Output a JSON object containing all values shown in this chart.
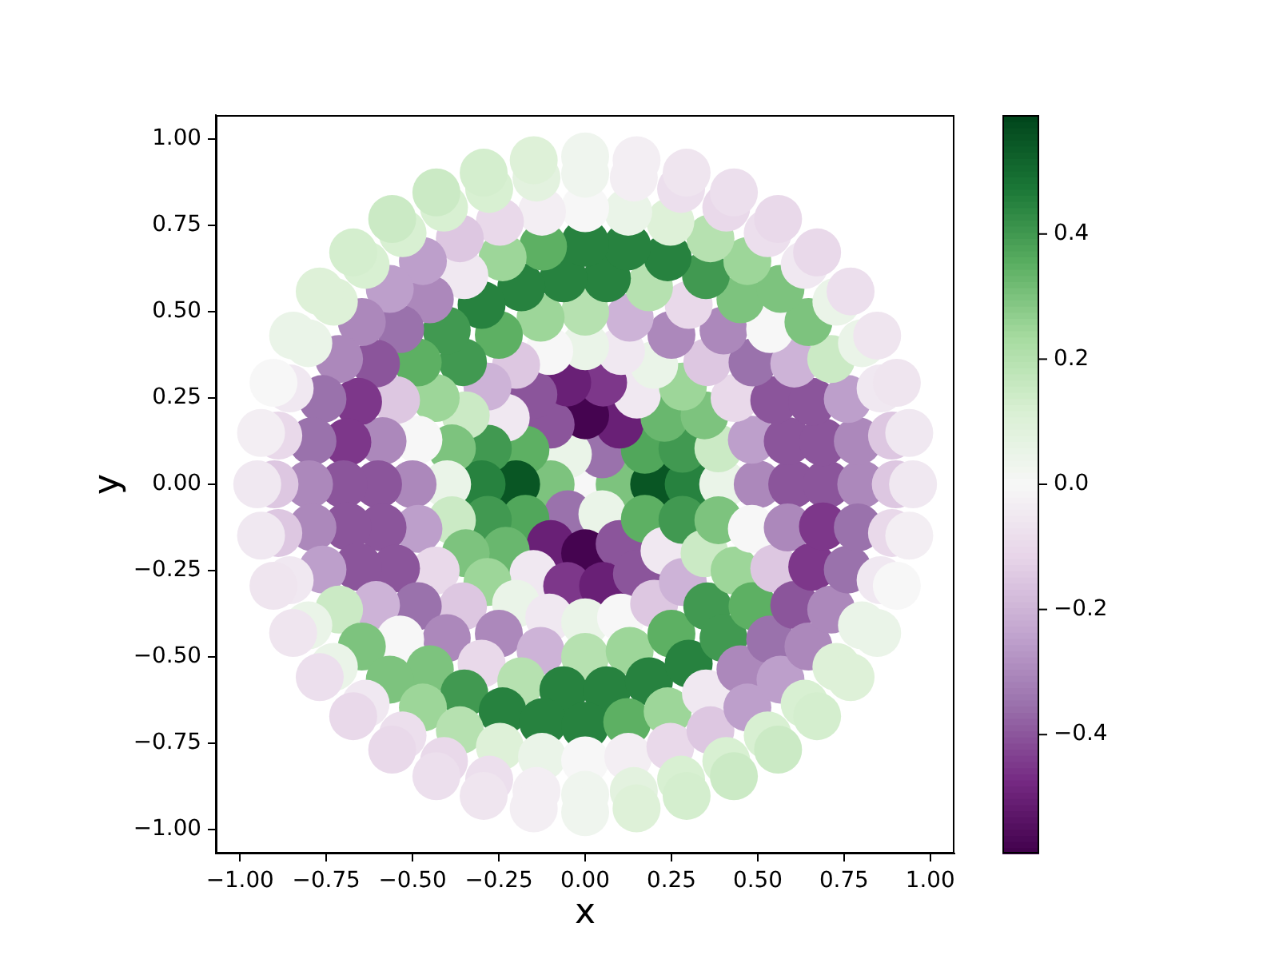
{
  "chart_data": {
    "type": "scatter",
    "xlabel": "x",
    "ylabel": "y",
    "marker": "circle",
    "xlim": [
      -1.07,
      1.07
    ],
    "ylim": [
      -1.07,
      1.07
    ],
    "xticks": [
      {
        "value": -1,
        "label": "−1.00"
      },
      {
        "value": -0.75,
        "label": "−0.75"
      },
      {
        "value": -0.5,
        "label": "−0.50"
      },
      {
        "value": -0.25,
        "label": "−0.25"
      },
      {
        "value": 0,
        "label": "0.00"
      },
      {
        "value": 0.25,
        "label": "0.25"
      },
      {
        "value": 0.5,
        "label": "0.50"
      },
      {
        "value": 0.75,
        "label": "0.75"
      },
      {
        "value": 1,
        "label": "1.00"
      }
    ],
    "yticks": [
      {
        "value": -1,
        "label": "−1.00"
      },
      {
        "value": -0.75,
        "label": "−0.75"
      },
      {
        "value": -0.5,
        "label": "−0.50"
      },
      {
        "value": -0.25,
        "label": "−0.25"
      },
      {
        "value": 0,
        "label": "0.00"
      },
      {
        "value": 0.25,
        "label": "0.25"
      },
      {
        "value": 0.5,
        "label": "0.50"
      },
      {
        "value": 0.75,
        "label": "0.75"
      },
      {
        "value": 1,
        "label": "1.00"
      }
    ],
    "clim": [
      -0.59,
      0.59
    ],
    "cticks": [
      {
        "value": -0.4,
        "label": "−0.4"
      },
      {
        "value": -0.2,
        "label": "−0.2"
      },
      {
        "value": 0,
        "label": "0.0"
      },
      0.2,
      0.4
    ],
    "x": [
      0,
      0.1,
      0.05,
      -0.05,
      -0.1,
      -0.05,
      0.05,
      0.2,
      0.173,
      0.1,
      0,
      -0.1,
      -0.173,
      -0.2,
      -0.173,
      -0.1,
      0,
      0.1,
      0.173,
      0.3,
      0.282,
      0.23,
      0.15,
      0.052,
      -0.052,
      -0.15,
      -0.23,
      -0.282,
      -0.3,
      -0.282,
      -0.23,
      -0.15,
      -0.052,
      0.052,
      0.15,
      0.23,
      0.282,
      0.4,
      0.386,
      0.346,
      0.283,
      0.2,
      0.104,
      0,
      -0.104,
      -0.2,
      -0.283,
      -0.346,
      -0.386,
      -0.4,
      -0.386,
      -0.346,
      -0.283,
      -0.2,
      -0.104,
      0,
      0.104,
      0.2,
      0.283,
      0.346,
      0.386,
      0.5,
      0.483,
      0.433,
      0.354,
      0.25,
      0.129,
      0,
      -0.129,
      -0.25,
      -0.354,
      -0.433,
      -0.483,
      -0.5,
      -0.483,
      -0.433,
      -0.354,
      -0.25,
      -0.129,
      0,
      0.129,
      0.25,
      0.354,
      0.433,
      0.483,
      0.6,
      0.587,
      0.548,
      0.485,
      0.401,
      0.3,
      0.185,
      0.063,
      -0.063,
      -0.185,
      -0.3,
      -0.401,
      -0.485,
      -0.548,
      -0.587,
      -0.6,
      -0.587,
      -0.548,
      -0.485,
      -0.401,
      -0.3,
      -0.185,
      -0.063,
      0.063,
      0.185,
      0.3,
      0.401,
      0.485,
      0.548,
      0.587,
      0.7,
      0.689,
      0.658,
      0.606,
      0.536,
      0.45,
      0.35,
      0.239,
      0.122,
      0,
      -0.122,
      -0.239,
      -0.35,
      -0.45,
      -0.536,
      -0.606,
      -0.658,
      -0.689,
      -0.7,
      -0.689,
      -0.658,
      -0.606,
      -0.536,
      -0.45,
      -0.35,
      -0.239,
      -0.122,
      0,
      0.122,
      0.239,
      0.35,
      0.45,
      0.536,
      0.606,
      0.658,
      0.689,
      0.8,
      0.79,
      0.761,
      0.713,
      0.647,
      0.566,
      0.47,
      0.363,
      0.247,
      0.125,
      0,
      -0.125,
      -0.247,
      -0.363,
      -0.47,
      -0.566,
      -0.647,
      -0.713,
      -0.761,
      -0.79,
      -0.8,
      -0.79,
      -0.761,
      -0.713,
      -0.647,
      -0.566,
      -0.47,
      -0.363,
      -0.247,
      -0.125,
      0,
      0.125,
      0.247,
      0.363,
      0.47,
      0.566,
      0.647,
      0.713,
      0.761,
      0.79,
      0.9,
      0.889,
      0.856,
      0.802,
      0.728,
      0.636,
      0.529,
      0.409,
      0.278,
      0.141,
      0,
      -0.141,
      -0.278,
      -0.409,
      -0.529,
      -0.636,
      -0.728,
      -0.802,
      -0.856,
      -0.889,
      -0.9,
      -0.889,
      -0.856,
      -0.802,
      -0.728,
      -0.636,
      -0.529,
      -0.409,
      -0.278,
      -0.141,
      0,
      0.141,
      0.278,
      0.409,
      0.529,
      0.636,
      0.728,
      0.802,
      0.856,
      0.889,
      0.95,
      0.939,
      0.903,
      0.846,
      0.769,
      0.672,
      0.559,
      0.431,
      0.294,
      0.149,
      0,
      -0.149,
      -0.294,
      -0.431,
      -0.559,
      -0.672,
      -0.769,
      -0.846,
      -0.903,
      -0.939,
      -0.95,
      -0.939,
      -0.903,
      -0.846,
      -0.769,
      -0.672,
      -0.559,
      -0.431,
      -0.294,
      -0.149,
      0,
      0.149,
      0.294,
      0.431,
      0.559,
      0.672,
      0.769,
      0.846,
      0.903,
      0.939
    ],
    "values": [
      0,
      0,
      0.087,
      0.087,
      0,
      -0.087,
      -0.087,
      0,
      0.1,
      0.173,
      0.2,
      0.173,
      0.1,
      0,
      -0.1,
      -0.173,
      -0.2,
      -0.173,
      -0.1,
      0,
      0.103,
      0.193,
      0.26,
      0.295,
      0.295,
      0.26,
      0.193,
      0.103,
      0,
      -0.103,
      -0.193,
      -0.26,
      -0.295,
      -0.295,
      -0.26,
      -0.193,
      -0.103,
      0,
      0.104,
      0.2,
      0.283,
      0.346,
      0.386,
      0.4,
      0.386,
      0.346,
      0.283,
      0.2,
      0.104,
      0,
      -0.104,
      -0.2,
      -0.283,
      -0.346,
      -0.386,
      -0.4,
      -0.386,
      -0.346,
      -0.283,
      -0.2,
      -0.104,
      0,
      0.129,
      0.25,
      0.354,
      0.433,
      0.483,
      0.5,
      0.483,
      0.433,
      0.354,
      0.25,
      0.129,
      0,
      -0.129,
      -0.25,
      -0.354,
      -0.433,
      -0.483,
      -0.5,
      -0.483,
      -0.433,
      -0.354,
      -0.25,
      -0.129,
      0,
      0.125,
      0.244,
      0.353,
      0.446,
      0.52,
      0.571,
      0.597,
      0.597,
      0.571,
      0.52,
      0.446,
      0.353,
      0.244,
      0.125,
      0,
      -0.125,
      -0.244,
      -0.353,
      -0.446,
      -0.52,
      -0.571,
      -0.597,
      -0.597,
      -0.571,
      -0.52,
      -0.446,
      -0.353,
      -0.244,
      -0.125,
      0,
      0.122,
      0.239,
      0.35,
      0.45,
      0.536,
      0.606,
      0.658,
      0.689,
      0.7,
      0.689,
      0.658,
      0.606,
      0.536,
      0.45,
      0.35,
      0.239,
      0.122,
      0,
      -0.122,
      -0.239,
      -0.35,
      -0.45,
      -0.536,
      -0.606,
      -0.658,
      -0.689,
      -0.7,
      -0.689,
      -0.658,
      -0.606,
      -0.536,
      -0.45,
      -0.35,
      -0.239,
      -0.122,
      0,
      0.125,
      0.247,
      0.363,
      0.47,
      0.566,
      0.647,
      0.713,
      0.761,
      0.79,
      0.8,
      0.79,
      0.761,
      0.713,
      0.647,
      0.566,
      0.47,
      0.363,
      0.247,
      0.125,
      0,
      -0.125,
      -0.247,
      -0.363,
      -0.47,
      -0.566,
      -0.647,
      -0.713,
      -0.761,
      -0.79,
      -0.8,
      -0.79,
      -0.761,
      -0.713,
      -0.647,
      -0.566,
      -0.47,
      -0.363,
      -0.247,
      -0.125,
      0,
      0.141,
      0.278,
      0.409,
      0.529,
      0.636,
      0.728,
      0.802,
      0.856,
      0.889,
      0.9,
      0.889,
      0.856,
      0.802,
      0.728,
      0.636,
      0.529,
      0.409,
      0.278,
      0.141,
      0,
      -0.141,
      -0.278,
      -0.409,
      -0.529,
      -0.636,
      -0.728,
      -0.802,
      -0.856,
      -0.889,
      -0.9,
      -0.889,
      -0.856,
      -0.802,
      -0.728,
      -0.636,
      -0.529,
      -0.409,
      -0.278,
      -0.141,
      0,
      0.149,
      0.294,
      0.431,
      0.559,
      0.672,
      0.769,
      0.846,
      0.903,
      0.939,
      0.95,
      0.939,
      0.903,
      0.846,
      0.769,
      0.672,
      0.559,
      0.431,
      0.294,
      0.149,
      0,
      -0.149,
      -0.294,
      -0.431,
      -0.559,
      -0.672,
      -0.769,
      -0.846,
      -0.903,
      -0.939,
      -0.95,
      -0.939,
      -0.903,
      -0.846,
      -0.769,
      -0.672,
      -0.559,
      -0.431,
      -0.294,
      -0.149
    ],
    "cvalues": [
      0,
      0.3,
      -0.35,
      0.05,
      0.3,
      -0.35,
      0.05,
      0.55,
      0.37,
      -0.5,
      -0.58,
      -0.4,
      0.35,
      0.55,
      0.37,
      -0.5,
      -0.58,
      -0.4,
      0.35,
      0.45,
      0.4,
      0.33,
      -0.05,
      -0.45,
      -0.5,
      -0.4,
      -0.05,
      0.4,
      0.45,
      0.4,
      0.33,
      -0.05,
      -0.45,
      -0.5,
      -0.4,
      -0.05,
      0.4,
      0.05,
      0.15,
      0.3,
      0.25,
      0.05,
      -0.05,
      0.05,
      0,
      -0.15,
      -0.2,
      0.15,
      0.3,
      0.05,
      0.15,
      0.3,
      0.25,
      0.05,
      -0.05,
      0.05,
      0,
      -0.15,
      -0.2,
      0.15,
      0.3,
      -0.3,
      -0.25,
      -0.1,
      -0.15,
      -0.3,
      -0.2,
      0.2,
      0.25,
      0.35,
      0.4,
      0.25,
      0,
      -0.3,
      -0.25,
      -0.1,
      -0.15,
      -0.3,
      -0.2,
      0.2,
      0.25,
      0.35,
      0.4,
      0.25,
      0,
      -0.4,
      -0.4,
      -0.4,
      -0.35,
      -0.3,
      -0.1,
      0.2,
      0.45,
      0.45,
      0.45,
      0.45,
      0.4,
      0.35,
      -0.15,
      -0.3,
      -0.4,
      -0.4,
      -0.4,
      -0.35,
      -0.3,
      -0.1,
      0.2,
      0.45,
      0.45,
      0.45,
      0.45,
      0.4,
      0.35,
      -0.15,
      -0.3,
      -0.4,
      -0.4,
      -0.4,
      -0.2,
      0,
      0.3,
      0.4,
      0.45,
      0.45,
      0.45,
      0.35,
      0.25,
      -0.05,
      -0.3,
      -0.35,
      -0.4,
      -0.45,
      -0.45,
      -0.4,
      -0.4,
      -0.4,
      -0.2,
      0,
      0.3,
      0.4,
      0.45,
      0.45,
      0.45,
      0.35,
      0.25,
      -0.05,
      -0.3,
      -0.35,
      -0.4,
      -0.45,
      -0.45,
      -0.3,
      -0.3,
      -0.25,
      0.15,
      0.3,
      0.3,
      0.25,
      0.2,
      0.1,
      0.05,
      0,
      -0.03,
      -0.1,
      -0.15,
      -0.25,
      -0.25,
      -0.3,
      -0.3,
      -0.35,
      -0.35,
      -0.3,
      -0.3,
      -0.25,
      0.15,
      0.3,
      0.3,
      0.25,
      0.2,
      0.1,
      0.05,
      0,
      -0.03,
      -0.1,
      -0.15,
      -0.25,
      -0.25,
      -0.3,
      -0.3,
      -0.35,
      -0.35,
      -0.15,
      -0.15,
      -0.05,
      0.05,
      0.05,
      -0.05,
      -0.08,
      -0.1,
      -0.08,
      -0.03,
      0.03,
      0.08,
      0.12,
      0.12,
      0.12,
      0.12,
      0.1,
      0.05,
      -0.05,
      -0.1,
      -0.15,
      -0.15,
      -0.05,
      0.05,
      0.05,
      -0.05,
      -0.08,
      -0.1,
      -0.08,
      -0.03,
      0.03,
      0.08,
      0.12,
      0.12,
      0.12,
      0.12,
      0.1,
      0.05,
      -0.05,
      -0.1,
      -0.05,
      -0.05,
      -0.06,
      -0.06,
      -0.08,
      -0.1,
      -0.1,
      -0.08,
      -0.06,
      -0.03,
      0.03,
      0.1,
      0.13,
      0.15,
      0.15,
      0.13,
      0.1,
      0.05,
      0,
      -0.03,
      -0.05,
      -0.05,
      -0.06,
      -0.06,
      -0.08,
      -0.1,
      -0.1,
      -0.08,
      -0.06,
      -0.03,
      0.03,
      0.1,
      0.13,
      0.15,
      0.15,
      0.13,
      0.1,
      0.05,
      0,
      -0.03
    ]
  }
}
